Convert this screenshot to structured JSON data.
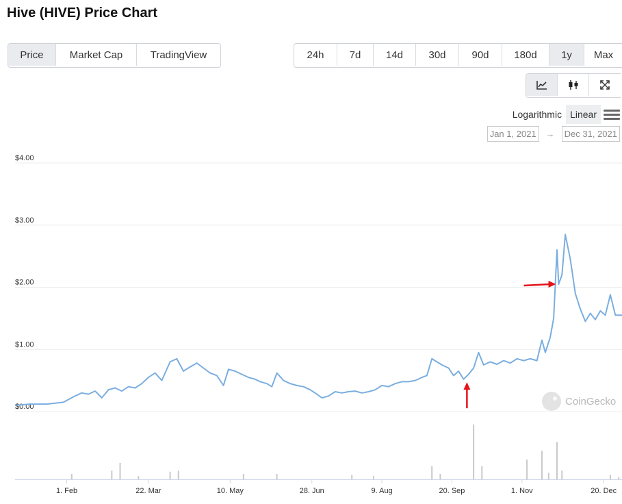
{
  "page_title": "Hive (HIVE) Price Chart",
  "view_tabs": [
    {
      "label": "Price",
      "active": true
    },
    {
      "label": "Market Cap",
      "active": false
    },
    {
      "label": "TradingView",
      "active": false
    }
  ],
  "range_tabs": [
    {
      "label": "24h",
      "active": false
    },
    {
      "label": "7d",
      "active": false
    },
    {
      "label": "14d",
      "active": false
    },
    {
      "label": "30d",
      "active": false
    },
    {
      "label": "90d",
      "active": false
    },
    {
      "label": "180d",
      "active": false
    },
    {
      "label": "1y",
      "active": true
    },
    {
      "label": "Max",
      "active": false
    }
  ],
  "chart_type_buttons": [
    {
      "icon": "line-chart-icon",
      "active": true
    },
    {
      "icon": "candlestick-icon",
      "active": false
    },
    {
      "icon": "fullscreen-icon",
      "active": false
    }
  ],
  "scale": {
    "logarithmic_label": "Logarithmic",
    "linear_label": "Linear",
    "active": "linear"
  },
  "date_range": {
    "from": "Jan 1, 2021",
    "to": "Dec 31, 2021",
    "separator": "→"
  },
  "watermark": "CoinGecko",
  "colors": {
    "line": "#7aaee0",
    "volume": "#c9c9c9",
    "annotation_arrow": "#e5141b",
    "active_tab": "#e9ebee"
  },
  "chart_data": {
    "type": "line",
    "title": "",
    "xlabel": "",
    "ylabel": "",
    "ylim": [
      0,
      4
    ],
    "y_ticks": [
      "$0.00",
      "$1.00",
      "$2.00",
      "$3.00",
      "$4.00"
    ],
    "x_ticks": [
      "1. Feb",
      "22. Mar",
      "10. May",
      "28. Jun",
      "9. Aug",
      "20. Sep",
      "1. Nov",
      "20. Dec"
    ],
    "xlim": [
      "2021-01-01",
      "2021-12-31"
    ],
    "grid": true,
    "series": [
      {
        "values": [
          [
            "2021-01-01",
            0.1
          ],
          [
            "2021-01-10",
            0.12
          ],
          [
            "2021-01-20",
            0.12
          ],
          [
            "2021-01-30",
            0.15
          ],
          [
            "2021-02-06",
            0.25
          ],
          [
            "2021-02-10",
            0.3
          ],
          [
            "2021-02-14",
            0.28
          ],
          [
            "2021-02-18",
            0.33
          ],
          [
            "2021-02-22",
            0.22
          ],
          [
            "2021-02-26",
            0.35
          ],
          [
            "2021-03-02",
            0.38
          ],
          [
            "2021-03-06",
            0.33
          ],
          [
            "2021-03-10",
            0.4
          ],
          [
            "2021-03-14",
            0.38
          ],
          [
            "2021-03-18",
            0.45
          ],
          [
            "2021-03-22",
            0.55
          ],
          [
            "2021-03-26",
            0.62
          ],
          [
            "2021-03-30",
            0.5
          ],
          [
            "2021-04-04",
            0.8
          ],
          [
            "2021-04-08",
            0.85
          ],
          [
            "2021-04-12",
            0.65
          ],
          [
            "2021-04-16",
            0.72
          ],
          [
            "2021-04-20",
            0.78
          ],
          [
            "2021-04-24",
            0.7
          ],
          [
            "2021-04-28",
            0.62
          ],
          [
            "2021-05-02",
            0.58
          ],
          [
            "2021-05-06",
            0.42
          ],
          [
            "2021-05-09",
            0.68
          ],
          [
            "2021-05-13",
            0.65
          ],
          [
            "2021-05-17",
            0.6
          ],
          [
            "2021-05-21",
            0.55
          ],
          [
            "2021-05-25",
            0.52
          ],
          [
            "2021-05-28",
            0.48
          ],
          [
            "2021-06-01",
            0.45
          ],
          [
            "2021-06-04",
            0.4
          ],
          [
            "2021-06-07",
            0.62
          ],
          [
            "2021-06-11",
            0.5
          ],
          [
            "2021-06-15",
            0.45
          ],
          [
            "2021-06-19",
            0.42
          ],
          [
            "2021-06-23",
            0.4
          ],
          [
            "2021-06-27",
            0.35
          ],
          [
            "2021-07-01",
            0.28
          ],
          [
            "2021-07-04",
            0.22
          ],
          [
            "2021-07-08",
            0.25
          ],
          [
            "2021-07-12",
            0.32
          ],
          [
            "2021-07-16",
            0.3
          ],
          [
            "2021-07-20",
            0.32
          ],
          [
            "2021-07-24",
            0.33
          ],
          [
            "2021-07-28",
            0.3
          ],
          [
            "2021-08-01",
            0.32
          ],
          [
            "2021-08-05",
            0.35
          ],
          [
            "2021-08-09",
            0.42
          ],
          [
            "2021-08-13",
            0.4
          ],
          [
            "2021-08-17",
            0.45
          ],
          [
            "2021-08-21",
            0.48
          ],
          [
            "2021-08-25",
            0.48
          ],
          [
            "2021-08-29",
            0.5
          ],
          [
            "2021-09-02",
            0.55
          ],
          [
            "2021-09-05",
            0.58
          ],
          [
            "2021-09-08",
            0.85
          ],
          [
            "2021-09-11",
            0.8
          ],
          [
            "2021-09-14",
            0.75
          ],
          [
            "2021-09-18",
            0.7
          ],
          [
            "2021-09-21",
            0.58
          ],
          [
            "2021-09-24",
            0.65
          ],
          [
            "2021-09-27",
            0.52
          ],
          [
            "2021-09-30",
            0.6
          ],
          [
            "2021-10-03",
            0.7
          ],
          [
            "2021-10-06",
            0.95
          ],
          [
            "2021-10-09",
            0.75
          ],
          [
            "2021-10-13",
            0.8
          ],
          [
            "2021-10-17",
            0.76
          ],
          [
            "2021-10-21",
            0.82
          ],
          [
            "2021-10-25",
            0.78
          ],
          [
            "2021-10-29",
            0.85
          ],
          [
            "2021-11-02",
            0.82
          ],
          [
            "2021-11-06",
            0.85
          ],
          [
            "2021-11-10",
            0.82
          ],
          [
            "2021-11-13",
            1.15
          ],
          [
            "2021-11-15",
            0.95
          ],
          [
            "2021-11-18",
            1.2
          ],
          [
            "2021-11-20",
            1.5
          ],
          [
            "2021-11-22",
            2.6
          ],
          [
            "2021-11-23",
            2.05
          ],
          [
            "2021-11-25",
            2.2
          ],
          [
            "2021-11-27",
            2.85
          ],
          [
            "2021-11-30",
            2.45
          ],
          [
            "2021-12-03",
            1.9
          ],
          [
            "2021-12-06",
            1.65
          ],
          [
            "2021-12-09",
            1.45
          ],
          [
            "2021-12-12",
            1.58
          ],
          [
            "2021-12-15",
            1.48
          ],
          [
            "2021-12-18",
            1.62
          ],
          [
            "2021-12-21",
            1.55
          ],
          [
            "2021-12-24",
            1.88
          ],
          [
            "2021-12-27",
            1.55
          ],
          [
            "2021-12-31",
            1.55
          ]
        ]
      }
    ],
    "volume": [
      [
        "2021-02-04",
        0.05
      ],
      [
        "2021-02-28",
        0.08
      ],
      [
        "2021-03-05",
        0.15
      ],
      [
        "2021-03-16",
        0.03
      ],
      [
        "2021-04-04",
        0.07
      ],
      [
        "2021-04-09",
        0.08
      ],
      [
        "2021-05-18",
        0.05
      ],
      [
        "2021-06-07",
        0.05
      ],
      [
        "2021-07-22",
        0.04
      ],
      [
        "2021-08-04",
        0.03
      ],
      [
        "2021-09-08",
        0.12
      ],
      [
        "2021-09-13",
        0.05
      ],
      [
        "2021-10-03",
        0.5
      ],
      [
        "2021-10-08",
        0.12
      ],
      [
        "2021-11-04",
        0.18
      ],
      [
        "2021-11-13",
        0.26
      ],
      [
        "2021-11-17",
        0.06
      ],
      [
        "2021-11-22",
        0.34
      ],
      [
        "2021-11-25",
        0.08
      ],
      [
        "2021-12-24",
        0.04
      ],
      [
        "2021-12-29",
        0.02
      ]
    ],
    "annotations": [
      {
        "type": "arrow",
        "direction": "up",
        "at": [
          "2021-09-29",
          0.45
        ]
      },
      {
        "type": "arrow",
        "direction": "right",
        "at": [
          "2021-11-21",
          2.05
        ]
      }
    ]
  }
}
